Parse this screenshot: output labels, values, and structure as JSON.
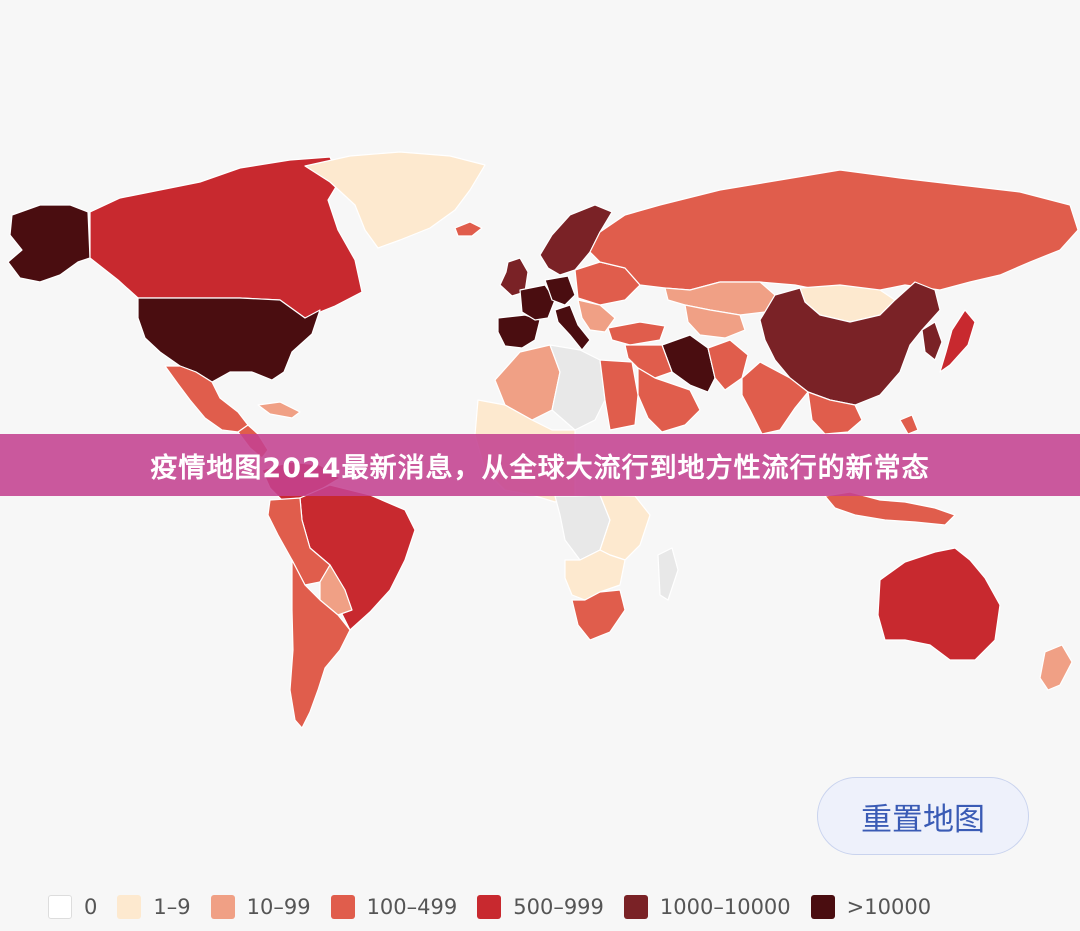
{
  "banner": {
    "title": "疫情地图2024最新消息，从全球大流行到地方性流行的新常态"
  },
  "controls": {
    "reset_label": "重置地图"
  },
  "legend": [
    {
      "label": "0",
      "color": "#ffffff"
    },
    {
      "label": "1–9",
      "color": "#fde9cf"
    },
    {
      "label": "10–99",
      "color": "#f0a085"
    },
    {
      "label": "100–499",
      "color": "#e05d4c"
    },
    {
      "label": "500–999",
      "color": "#c8292f"
    },
    {
      "label": "1000–10000",
      "color": "#7a2226"
    },
    {
      "label": ">10000",
      "color": "#4a0d10"
    }
  ],
  "colors": {
    "nodata": "#e8e8e8",
    "banner": "#c44291",
    "reset_text": "#3a5bb5"
  },
  "regions": [
    {
      "name": "alaska",
      "bucket": 6
    },
    {
      "name": "canada",
      "bucket": 4
    },
    {
      "name": "greenland",
      "bucket": 1
    },
    {
      "name": "usa",
      "bucket": 6
    },
    {
      "name": "mexico",
      "bucket": 3
    },
    {
      "name": "central-america",
      "bucket": 3
    },
    {
      "name": "caribbean",
      "bucket": 2
    },
    {
      "name": "colombia-venezuela",
      "bucket": 4
    },
    {
      "name": "brazil",
      "bucket": 4
    },
    {
      "name": "peru-bolivia",
      "bucket": 3
    },
    {
      "name": "paraguay",
      "bucket": 2
    },
    {
      "name": "argentina-chile",
      "bucket": 3
    },
    {
      "name": "iceland",
      "bucket": 3
    },
    {
      "name": "uk-ireland",
      "bucket": 5
    },
    {
      "name": "iberia",
      "bucket": 6
    },
    {
      "name": "france",
      "bucket": 6
    },
    {
      "name": "germany",
      "bucket": 6
    },
    {
      "name": "scandinavia",
      "bucket": 5
    },
    {
      "name": "italy",
      "bucket": 6
    },
    {
      "name": "eastern-europe",
      "bucket": 3
    },
    {
      "name": "balkans",
      "bucket": 2
    },
    {
      "name": "turkey",
      "bucket": 3
    },
    {
      "name": "russia",
      "bucket": 3
    },
    {
      "name": "kazakhstan",
      "bucket": 2
    },
    {
      "name": "central-asia",
      "bucket": 2
    },
    {
      "name": "mongolia",
      "bucket": 1
    },
    {
      "name": "china",
      "bucket": 5
    },
    {
      "name": "korea",
      "bucket": 5
    },
    {
      "name": "japan",
      "bucket": 4
    },
    {
      "name": "iran",
      "bucket": 6
    },
    {
      "name": "middle-east",
      "bucket": 3
    },
    {
      "name": "arabia",
      "bucket": 3
    },
    {
      "name": "afghanistan-pakistan",
      "bucket": 3
    },
    {
      "name": "india",
      "bucket": 3
    },
    {
      "name": "southeast-asia",
      "bucket": 3
    },
    {
      "name": "indonesia",
      "bucket": 3
    },
    {
      "name": "philippines",
      "bucket": 3
    },
    {
      "name": "north-africa",
      "bucket": 2
    },
    {
      "name": "sahara-north",
      "bucket": 0
    },
    {
      "name": "egypt",
      "bucket": 3
    },
    {
      "name": "west-africa",
      "bucket": 1
    },
    {
      "name": "central-africa",
      "bucket": 0
    },
    {
      "name": "east-africa",
      "bucket": 1
    },
    {
      "name": "southern-africa",
      "bucket": 1
    },
    {
      "name": "south-africa",
      "bucket": 3
    },
    {
      "name": "madagascar",
      "bucket": 0
    },
    {
      "name": "australia",
      "bucket": 4
    },
    {
      "name": "new-zealand",
      "bucket": 2
    }
  ]
}
